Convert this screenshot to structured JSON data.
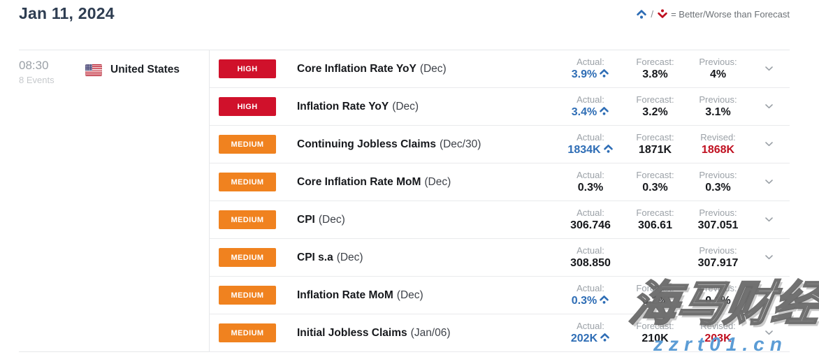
{
  "header": {
    "date": "Jan 11, 2024",
    "legend": {
      "separator": "/",
      "text": "= Better/Worse than Forecast"
    }
  },
  "group": {
    "time": "08:30",
    "events_count": "8 Events",
    "country": "United States"
  },
  "colors": {
    "high_badge": "#d0112b",
    "medium_badge": "#f0821f",
    "better_than_forecast": "#2e6db5",
    "worse_than_forecast": "#c01020"
  },
  "events": [
    {
      "importance": "HIGH",
      "title": "Core Inflation Rate YoY",
      "period": "(Dec)",
      "cols": [
        {
          "label": "Actual:",
          "value": "3.9%",
          "style": "better",
          "arrow": "up"
        },
        {
          "label": "Forecast:",
          "value": "3.8%",
          "style": "normal"
        },
        {
          "label": "Previous:",
          "value": "4%",
          "style": "normal"
        }
      ]
    },
    {
      "importance": "HIGH",
      "title": "Inflation Rate YoY",
      "period": "(Dec)",
      "cols": [
        {
          "label": "Actual:",
          "value": "3.4%",
          "style": "better",
          "arrow": "up"
        },
        {
          "label": "Forecast:",
          "value": "3.2%",
          "style": "normal"
        },
        {
          "label": "Previous:",
          "value": "3.1%",
          "style": "normal"
        }
      ]
    },
    {
      "importance": "MEDIUM",
      "title": "Continuing Jobless Claims",
      "period": "(Dec/30)",
      "cols": [
        {
          "label": "Actual:",
          "value": "1834K",
          "style": "better",
          "arrow": "up"
        },
        {
          "label": "Forecast:",
          "value": "1871K",
          "style": "normal"
        },
        {
          "label": "Revised:",
          "value": "1868K",
          "style": "revised"
        }
      ]
    },
    {
      "importance": "MEDIUM",
      "title": "Core Inflation Rate MoM",
      "period": "(Dec)",
      "cols": [
        {
          "label": "Actual:",
          "value": "0.3%",
          "style": "normal"
        },
        {
          "label": "Forecast:",
          "value": "0.3%",
          "style": "normal"
        },
        {
          "label": "Previous:",
          "value": "0.3%",
          "style": "normal"
        }
      ]
    },
    {
      "importance": "MEDIUM",
      "title": "CPI",
      "period": "(Dec)",
      "cols": [
        {
          "label": "Actual:",
          "value": "306.746",
          "style": "normal"
        },
        {
          "label": "Forecast:",
          "value": "306.61",
          "style": "normal"
        },
        {
          "label": "Previous:",
          "value": "307.051",
          "style": "normal"
        }
      ]
    },
    {
      "importance": "MEDIUM",
      "title": "CPI s.a",
      "period": "(Dec)",
      "cols": [
        {
          "label": "Actual:",
          "value": "308.850",
          "style": "normal"
        },
        {
          "label": "",
          "value": "",
          "style": "normal"
        },
        {
          "label": "Previous:",
          "value": "307.917",
          "style": "normal"
        }
      ]
    },
    {
      "importance": "MEDIUM",
      "title": "Inflation Rate MoM",
      "period": "(Dec)",
      "cols": [
        {
          "label": "Actual:",
          "value": "0.3%",
          "style": "better",
          "arrow": "up"
        },
        {
          "label": "Forecast:",
          "value": "0.2%",
          "style": "normal"
        },
        {
          "label": "Previous:",
          "value": "0.1%",
          "style": "normal"
        }
      ]
    },
    {
      "importance": "MEDIUM",
      "title": "Initial Jobless Claims",
      "period": "(Jan/06)",
      "cols": [
        {
          "label": "Actual:",
          "value": "202K",
          "style": "better",
          "arrow": "up"
        },
        {
          "label": "Forecast:",
          "value": "210K",
          "style": "normal"
        },
        {
          "label": "Revised:",
          "value": "203K",
          "style": "revised"
        }
      ]
    }
  ],
  "watermark": {
    "line1": "海马财经",
    "line2": "zzrt01.cn"
  }
}
